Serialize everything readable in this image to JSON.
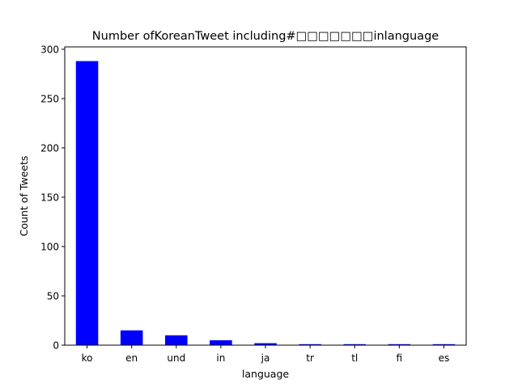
{
  "chart_data": {
    "type": "bar",
    "title": "Number ofKoreanTweet including#□□□□□□□inlanguage",
    "xlabel": "language",
    "ylabel": "Count of Tweets",
    "categories": [
      "ko",
      "en",
      "und",
      "in",
      "ja",
      "tr",
      "tl",
      "fi",
      "es"
    ],
    "values": [
      288,
      15,
      10,
      5,
      2,
      1,
      1,
      1,
      1
    ],
    "ylim": [
      0,
      302.4
    ],
    "yticks": [
      0,
      50,
      100,
      150,
      200,
      250,
      300
    ],
    "grid": false,
    "legend": "none",
    "bar_color": "#0000ff"
  }
}
